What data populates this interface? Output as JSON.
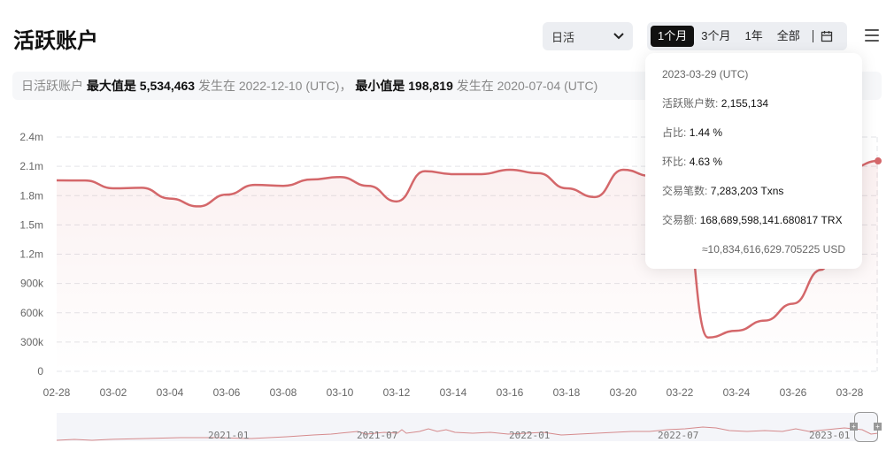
{
  "header": {
    "title": "活跃账户",
    "period_select": {
      "selected": "日活"
    },
    "range_options": [
      {
        "label": "1个月",
        "active": true
      },
      {
        "label": "3个月",
        "active": false
      },
      {
        "label": "1年",
        "active": false
      },
      {
        "label": "全部",
        "active": false
      }
    ],
    "calendar_icon": "calendar-icon",
    "menu_icon": "hamburger-menu-icon"
  },
  "summary": {
    "prefix": "日活跃账户",
    "max_label": "最大值是",
    "max_value": "5,534,463",
    "max_at": "发生在",
    "max_date": "2022-12-10 (UTC)，",
    "min_label": "最小值是",
    "min_value": "198,819",
    "min_at": "发生在",
    "min_date": "2020-07-04 (UTC)"
  },
  "tooltip": {
    "date": "2023-03-29 (UTC)",
    "active_label": "活跃账户数:",
    "active_value": "2,155,134",
    "share_label": "占比:",
    "share_value": "1.44 %",
    "change_label": "环比:",
    "change_value": "4.63 %",
    "txn_label": "交易笔数:",
    "txn_value": "7,283,203 Txns",
    "amount_label": "交易额:",
    "amount_value": "168,689,598,141.680817 TRX",
    "usd_value": "≈10,834,616,629.705225 USD"
  },
  "navigator": {
    "labels": [
      "2021-01",
      "2021-07",
      "2022-01",
      "2022-07",
      "2023-01"
    ]
  },
  "chart_data": {
    "type": "area",
    "title": "活跃账户",
    "series_name": "日活跃账户",
    "color": "#d4676a",
    "x": [
      "02-28",
      "03-01",
      "03-02",
      "03-03",
      "03-04",
      "03-05",
      "03-06",
      "03-07",
      "03-08",
      "03-09",
      "03-10",
      "03-11",
      "03-12",
      "03-13",
      "03-14",
      "03-15",
      "03-16",
      "03-17",
      "03-18",
      "03-19",
      "03-20",
      "03-21",
      "03-22",
      "03-23",
      "03-24",
      "03-25",
      "03-26",
      "03-27",
      "03-28",
      "03-29"
    ],
    "values": [
      1956000,
      1955000,
      1875000,
      1880000,
      1770000,
      1690000,
      1810000,
      1910000,
      1900000,
      1965000,
      1990000,
      1900000,
      1740000,
      2050000,
      2020000,
      2020000,
      2065000,
      2030000,
      1875000,
      1785000,
      2065000,
      2000000,
      null,
      null,
      null,
      null,
      null,
      null,
      2080000,
      2155134
    ],
    "x_tick_labels": [
      "02-28",
      "03-02",
      "03-04",
      "03-06",
      "03-08",
      "03-10",
      "03-12",
      "03-14",
      "03-16",
      "03-18",
      "03-20",
      "03-22",
      "03-24",
      "03-26",
      "03-28"
    ],
    "y_tick_labels": [
      "0",
      "300k",
      "600k",
      "900k",
      "1.2m",
      "1.5m",
      "1.8m",
      "2.1m",
      "2.4m"
    ],
    "ylim": [
      0,
      2400000
    ],
    "xlabel": "",
    "ylabel": "",
    "grid": true,
    "legend": "none"
  }
}
